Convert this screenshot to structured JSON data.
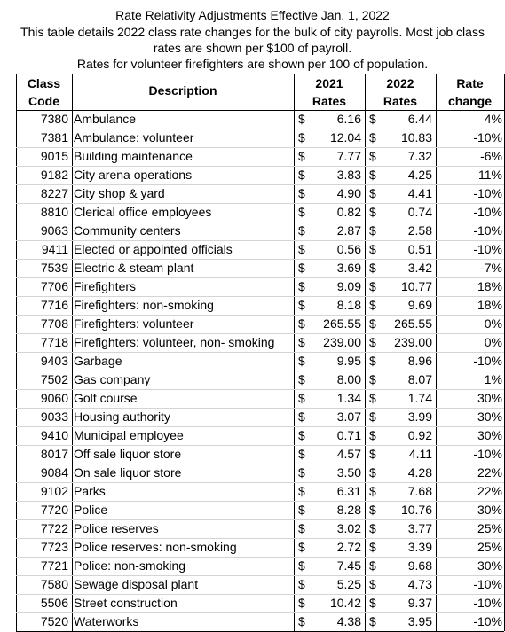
{
  "header": {
    "lines": [
      "Rate Relativity Adjustments Effective Jan. 1, 2022",
      "This table details 2022 class rate changes for the bulk of city payrolls. Most job class",
      "rates are shown per $100 of payroll.",
      "Rates for volunteer firefighters are shown per 100 of population."
    ]
  },
  "table": {
    "columns": [
      [
        "Class",
        "Code"
      ],
      [
        "Description"
      ],
      [
        "2021",
        "Rates"
      ],
      [
        "2022",
        "Rates"
      ],
      [
        "Rate",
        "change"
      ]
    ],
    "currency": "$",
    "rows": [
      [
        "7380",
        "Ambulance",
        "6.16",
        "6.44",
        "4%"
      ],
      [
        "7381",
        "Ambulance: volunteer",
        "12.04",
        "10.83",
        "-10%"
      ],
      [
        "9015",
        "Building maintenance",
        "7.77",
        "7.32",
        "-6%"
      ],
      [
        "9182",
        "City arena operations",
        "3.83",
        "4.25",
        "11%"
      ],
      [
        "8227",
        "City shop & yard",
        "4.90",
        "4.41",
        "-10%"
      ],
      [
        "8810",
        "Clerical office employees",
        "0.82",
        "0.74",
        "-10%"
      ],
      [
        "9063",
        "Community centers",
        "2.87",
        "2.58",
        "-10%"
      ],
      [
        "9411",
        "Elected or appointed officials",
        "0.56",
        "0.51",
        "-10%"
      ],
      [
        "7539",
        "Electric & steam plant",
        "3.69",
        "3.42",
        "-7%"
      ],
      [
        "7706",
        "Firefighters",
        "9.09",
        "10.77",
        "18%"
      ],
      [
        "7716",
        "Firefighters: non-smoking",
        "8.18",
        "9.69",
        "18%"
      ],
      [
        "7708",
        "Firefighters: volunteer",
        "265.55",
        "265.55",
        "0%"
      ],
      [
        "7718",
        "Firefighters: volunteer, non- smoking",
        "239.00",
        "239.00",
        "0%"
      ],
      [
        "9403",
        "Garbage",
        "9.95",
        "8.96",
        "-10%"
      ],
      [
        "7502",
        "Gas company",
        "8.00",
        "8.07",
        "1%"
      ],
      [
        "9060",
        "Golf course",
        "1.34",
        "1.74",
        "30%"
      ],
      [
        "9033",
        "Housing authority",
        "3.07",
        "3.99",
        "30%"
      ],
      [
        "9410",
        "Municipal employee",
        "0.71",
        "0.92",
        "30%"
      ],
      [
        "8017",
        "Off sale liquor store",
        "4.57",
        "4.11",
        "-10%"
      ],
      [
        "9084",
        "On sale liquor store",
        "3.50",
        "4.28",
        "22%"
      ],
      [
        "9102",
        "Parks",
        "6.31",
        "7.68",
        "22%"
      ],
      [
        "7720",
        "Police",
        "8.28",
        "10.76",
        "30%"
      ],
      [
        "7722",
        "Police reserves",
        "3.02",
        "3.77",
        "25%"
      ],
      [
        "7723",
        "Police reserves: non-smoking",
        "2.72",
        "3.39",
        "25%"
      ],
      [
        "7721",
        "Police: non-smoking",
        "7.45",
        "9.68",
        "30%"
      ],
      [
        "7580",
        "Sewage disposal plant",
        "5.25",
        "4.73",
        "-10%"
      ],
      [
        "5506",
        "Street construction",
        "10.42",
        "9.37",
        "-10%"
      ],
      [
        "7520",
        "Waterworks",
        "4.38",
        "3.95",
        "-10%"
      ]
    ]
  }
}
